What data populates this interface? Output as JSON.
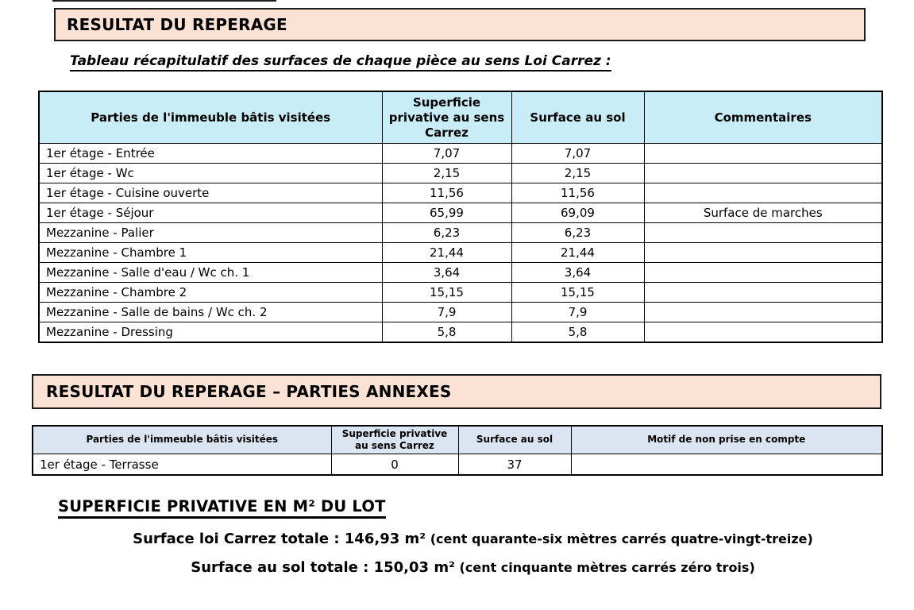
{
  "colors": {
    "title_bg": "#FCE2D5",
    "table1_header_bg": "#C8EDF6",
    "table2_header_bg": "#DBE4F1"
  },
  "section1": {
    "title": "RESULTAT DU REPERAGE",
    "subtitle": "Tableau récapitulatif des surfaces de chaque pièce au sens Loi Carrez :"
  },
  "table1": {
    "headers": [
      "Parties de l'immeuble bâtis visitées",
      "Superficie privative au sens Carrez",
      "Surface au sol",
      "Commentaires"
    ],
    "rows": [
      [
        "1er étage - Entrée",
        "7,07",
        "7,07",
        ""
      ],
      [
        "1er étage - Wc",
        "2,15",
        "2,15",
        ""
      ],
      [
        "1er étage - Cuisine ouverte",
        "11,56",
        "11,56",
        ""
      ],
      [
        "1er étage - Séjour",
        "65,99",
        "69,09",
        "Surface de marches"
      ],
      [
        "Mezzanine - Palier",
        "6,23",
        "6,23",
        ""
      ],
      [
        "Mezzanine - Chambre 1",
        "21,44",
        "21,44",
        ""
      ],
      [
        "Mezzanine - Salle d'eau / Wc ch. 1",
        "3,64",
        "3,64",
        ""
      ],
      [
        "Mezzanine - Chambre 2",
        "15,15",
        "15,15",
        ""
      ],
      [
        "Mezzanine - Salle de bains / Wc ch. 2",
        "7,9",
        "7,9",
        ""
      ],
      [
        "Mezzanine - Dressing",
        "5,8",
        "5,8",
        ""
      ]
    ]
  },
  "section2": {
    "title": "RESULTAT DU REPERAGE – PARTIES ANNEXES"
  },
  "table2": {
    "headers": [
      "Parties de l'immeuble bâtis visitées",
      "Superficie privative au sens Carrez",
      "Surface au sol",
      "Motif de non prise en compte"
    ],
    "rows": [
      [
        "1er étage - Terrasse",
        "0",
        "37",
        ""
      ]
    ]
  },
  "summary": {
    "heading": "SUPERFICIE PRIVATIVE EN M² DU LOT",
    "line1_main": "Surface loi Carrez totale : 146,93 m²",
    "line1_paren": "(cent quarante-six mètres carrés quatre-vingt-treize)",
    "line2_main": "Surface au sol totale : 150,03 m²",
    "line2_paren": "(cent cinquante mètres carrés zéro trois)"
  }
}
